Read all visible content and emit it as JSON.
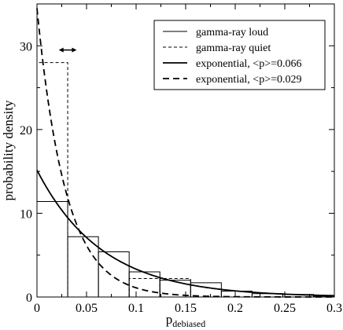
{
  "chart_data": {
    "type": "line",
    "title": "",
    "xlabel": "p",
    "xlabel_subscript": "debiased",
    "ylabel": "probability density",
    "xlim": [
      0,
      0.3
    ],
    "ylim": [
      0,
      35
    ],
    "x_ticks": [
      0,
      0.05,
      0.1,
      0.15,
      0.2,
      0.25,
      0.3
    ],
    "x_tick_labels": [
      "0",
      "0.05",
      "0.1",
      "0.15",
      "0.2",
      "0.25",
      "0.3"
    ],
    "y_ticks": [
      0,
      10,
      20,
      30
    ],
    "y_tick_labels": [
      "0",
      "10",
      "20",
      "30"
    ],
    "grid": false,
    "legend_position": "top-right",
    "series": [
      {
        "name": "gamma-ray loud",
        "kind": "histogram",
        "line": "solid",
        "color": "#000000",
        "bin_edges": [
          0,
          0.031,
          0.062,
          0.093,
          0.124,
          0.155,
          0.186,
          0.217,
          0.248,
          0.279,
          0.3
        ],
        "values": [
          11.4,
          7.2,
          5.4,
          3.0,
          2.0,
          1.7,
          0.7,
          0.4,
          0.3,
          0.1
        ]
      },
      {
        "name": "gamma-ray quiet",
        "kind": "histogram",
        "line": "dashed",
        "color": "#000000",
        "bin_edges": [
          0,
          0.031,
          0.062,
          0.093,
          0.124,
          0.155,
          0.186,
          0.217,
          0.248,
          0.279,
          0.3
        ],
        "values": [
          28.0,
          0,
          0,
          2.2,
          2.2,
          0,
          0,
          0,
          0,
          0
        ]
      },
      {
        "name": "exponential, <p>=0.066",
        "kind": "exponential",
        "line": "solid-thick",
        "color": "#000000",
        "mean": 0.066
      },
      {
        "name": "exponential, <p>=0.029",
        "kind": "exponential",
        "line": "dashed-thick",
        "color": "#000000",
        "mean": 0.029
      }
    ],
    "annotations": [
      {
        "type": "double-arrow",
        "x_start": 0.022,
        "x_end": 0.04,
        "y": 29.5
      }
    ]
  }
}
